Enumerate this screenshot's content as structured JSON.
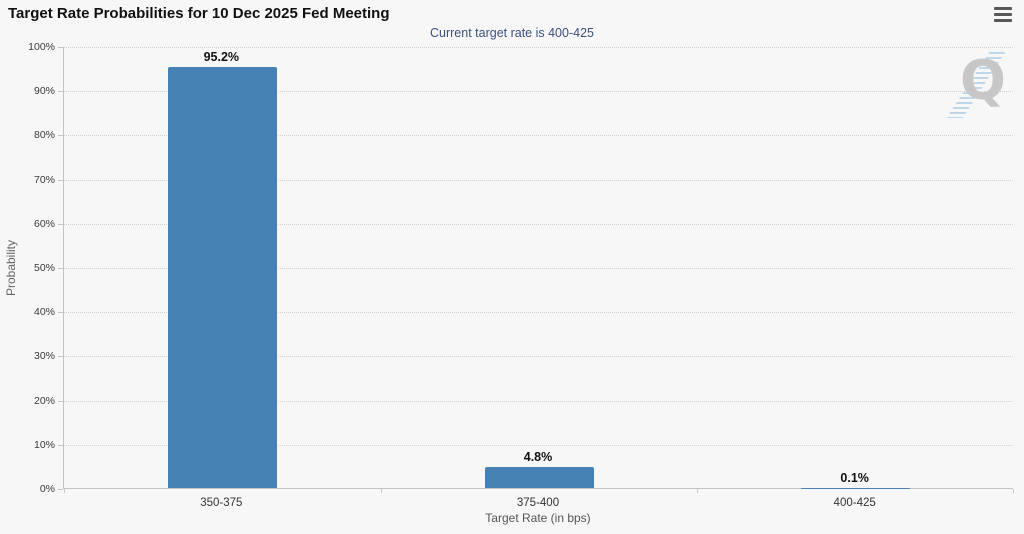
{
  "header": {
    "title": "Target Rate Probabilities for 10 Dec 2025 Fed Meeting",
    "subtitle": "Current target rate is 400-425"
  },
  "watermark": {
    "letter": "Q"
  },
  "colors": {
    "background": "#f7f7f7",
    "bar": "#4682b4",
    "subtitle_text": "#3d5180",
    "axis_line": "#c3c3c3",
    "gridline": "#d2d2d2",
    "menu_icon": "#57585a",
    "watermark_q": "#c7c7c7",
    "watermark_stripes": "#b7d3e8"
  },
  "chart_data": {
    "type": "bar",
    "title": "Target Rate Probabilities for 10 Dec 2025 Fed Meeting",
    "subtitle": "Current target rate is 400-425",
    "categories": [
      "350-375",
      "375-400",
      "400-425"
    ],
    "values": [
      95.2,
      4.8,
      0.1
    ],
    "value_labels": [
      "95.2%",
      "4.8%",
      "0.1%"
    ],
    "xlabel": "Target Rate (in bps)",
    "ylabel": "Probability",
    "ylim": [
      0,
      100
    ],
    "yticks": [
      0,
      10,
      20,
      30,
      40,
      50,
      60,
      70,
      80,
      90,
      100
    ],
    "ytick_labels": [
      "0%",
      "10%",
      "20%",
      "30%",
      "40%",
      "50%",
      "60%",
      "70%",
      "80%",
      "90%",
      "100%"
    ],
    "grid": "horizontal-dotted",
    "legend": "none"
  }
}
